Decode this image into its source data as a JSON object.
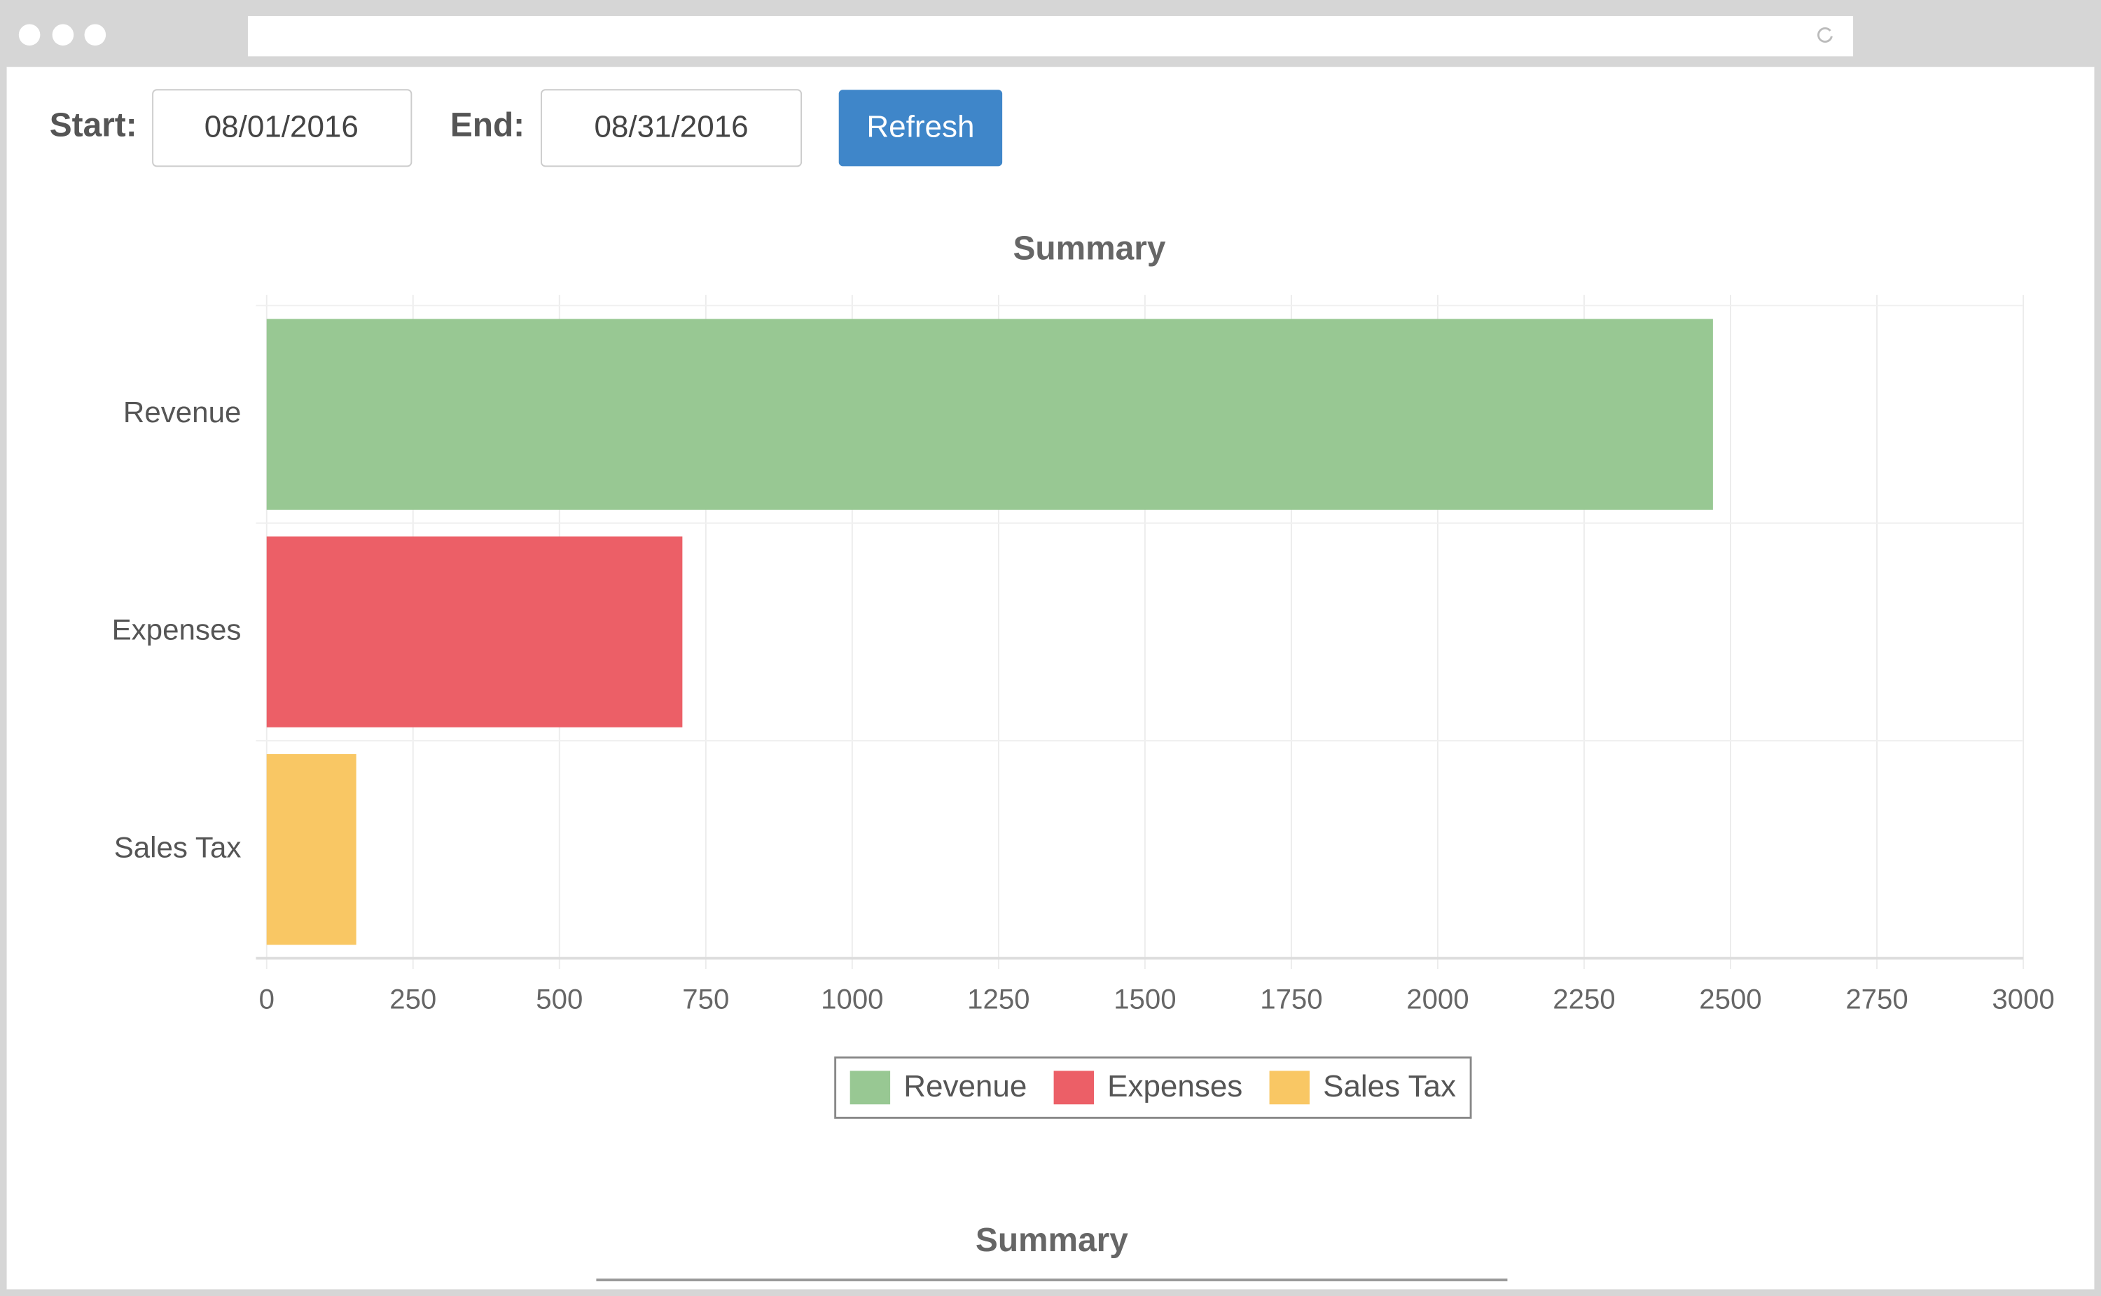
{
  "toolbar": {
    "start_label": "Start:",
    "start_value": "08/01/2016",
    "end_label": "End:",
    "end_value": "08/31/2016",
    "button": "Refresh"
  },
  "chart_data": {
    "type": "bar",
    "orientation": "horizontal",
    "title": "Summary",
    "categories": [
      "Revenue",
      "Expenses",
      "Sales Tax"
    ],
    "values": [
      2470,
      710,
      153
    ],
    "colors": [
      "#98c893",
      "#ec5f67",
      "#f9c764"
    ],
    "xlim": [
      0,
      3000
    ],
    "xticks": [
      0,
      250,
      500,
      750,
      1000,
      1250,
      1500,
      1750,
      2000,
      2250,
      2500,
      2750,
      3000
    ],
    "grid": true,
    "legend": "bottom"
  },
  "footer": {
    "title": "Summary"
  }
}
